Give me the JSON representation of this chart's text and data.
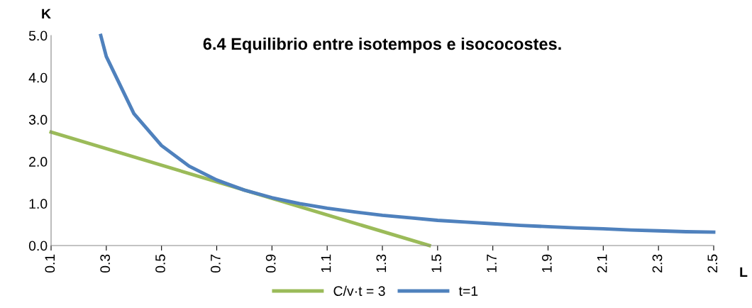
{
  "chart_data": {
    "type": "line",
    "title": "6.4 Equilibrio entre isotempos e isococostes.",
    "xlabel": "L",
    "ylabel": "K",
    "xlim": [
      0.1,
      2.5
    ],
    "xticks": [
      0.1,
      0.3,
      0.5,
      0.7,
      0.9,
      1.1,
      1.3,
      1.5,
      1.7,
      1.9,
      2.1,
      2.3,
      2.5
    ],
    "ylim": [
      0,
      5
    ],
    "yticks": [
      {
        "value": 0,
        "label": "0.0"
      },
      {
        "value": 1,
        "label": "1.0"
      },
      {
        "value": 2,
        "label": "2.0"
      },
      {
        "value": 3,
        "label": "3.0"
      },
      {
        "value": 4,
        "label": "4.0"
      },
      {
        "value": 5,
        "label": "5.0"
      }
    ],
    "grid": false,
    "legend": "bottom",
    "marker": "none",
    "line_style": "solid",
    "series": [
      {
        "name": "C/v·t = 3",
        "color": "#9bbb59",
        "x": [
          0.1,
          1.47
        ],
        "values": [
          2.7,
          0
        ]
      },
      {
        "name": "t=1",
        "color": "#4f81bd",
        "x": [
          0.28,
          0.3,
          0.4,
          0.5,
          0.6,
          0.7,
          0.8,
          0.9,
          1.0,
          1.1,
          1.2,
          1.3,
          1.4,
          1.5,
          1.6,
          1.7,
          1.8,
          1.9,
          2.0,
          2.1,
          2.2,
          2.3,
          2.4,
          2.5
        ],
        "values": [
          5.0,
          4.5,
          3.14,
          2.38,
          1.89,
          1.56,
          1.32,
          1.14,
          1.0,
          0.89,
          0.8,
          0.72,
          0.66,
          0.6,
          0.56,
          0.52,
          0.48,
          0.45,
          0.42,
          0.4,
          0.37,
          0.35,
          0.33,
          0.32
        ]
      }
    ]
  }
}
